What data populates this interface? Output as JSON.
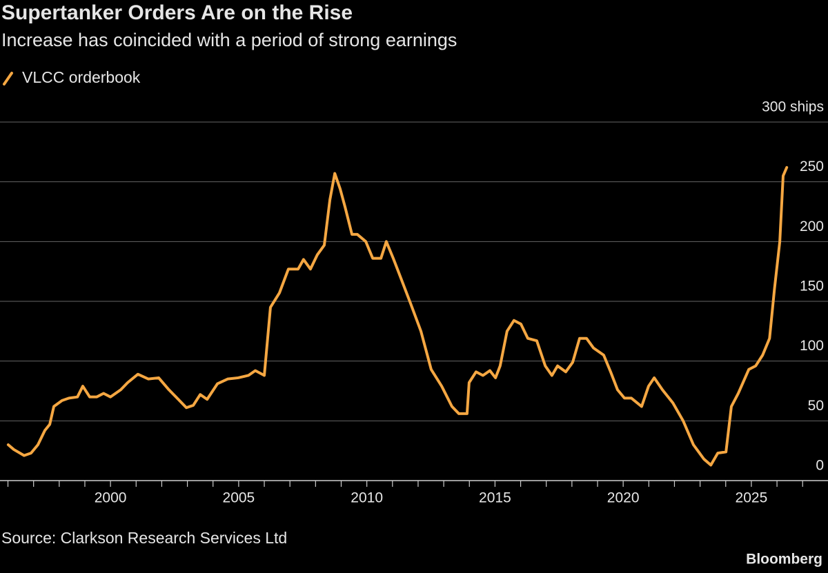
{
  "chart_data": {
    "type": "line",
    "title": "Supertanker Orders Are on the Rise",
    "subtitle": "Increase has coincided with a period of strong earnings",
    "source": "Source: Clarkson Research Services Ltd",
    "brand": "Bloomberg",
    "x": [
      1996.01,
      1996.23,
      1996.63,
      1996.9,
      1997.17,
      1997.44,
      1997.63,
      1997.79,
      1998.11,
      1998.38,
      1998.71,
      1998.92,
      1999.19,
      1999.46,
      1999.73,
      2000.0,
      2000.4,
      2000.67,
      2001.07,
      2001.48,
      2001.88,
      2002.28,
      2002.69,
      2002.96,
      2003.23,
      2003.5,
      2003.77,
      2004.17,
      2004.57,
      2004.98,
      2005.38,
      2005.65,
      2006.0,
      2006.24,
      2006.59,
      2006.94,
      2007.32,
      2007.53,
      2007.8,
      2008.07,
      2008.34,
      2008.56,
      2008.75,
      2008.96,
      2009.15,
      2009.42,
      2009.63,
      2009.96,
      2010.23,
      2010.55,
      2010.76,
      2011.03,
      2011.3,
      2011.71,
      2012.11,
      2012.51,
      2012.92,
      2013.32,
      2013.59,
      2013.91,
      2013.99,
      2014.26,
      2014.53,
      2014.8,
      2015.02,
      2015.2,
      2015.47,
      2015.74,
      2016.01,
      2016.28,
      2016.63,
      2016.96,
      2017.22,
      2017.44,
      2017.76,
      2018.03,
      2018.3,
      2018.57,
      2018.84,
      2019.24,
      2019.51,
      2019.78,
      2020.05,
      2020.32,
      2020.72,
      2020.99,
      2021.21,
      2021.53,
      2021.94,
      2022.34,
      2022.74,
      2023.15,
      2023.42,
      2023.69,
      2024.01,
      2024.22,
      2024.49,
      2024.9,
      2025.17,
      2025.44,
      2025.71,
      2025.9,
      2026.11,
      2026.24,
      2026.38
    ],
    "series": [
      {
        "name": "VLCC orderbook",
        "color": "#f5a742",
        "values": [
          30,
          26,
          21,
          23,
          30,
          42,
          47,
          62,
          67,
          69,
          70,
          79,
          70,
          70,
          73,
          70,
          76,
          82,
          89,
          85,
          86,
          76,
          67,
          61,
          63,
          72,
          68,
          81,
          85,
          86,
          88,
          92,
          88,
          145,
          157,
          177,
          177,
          185,
          177,
          189,
          197,
          235,
          257,
          244,
          229,
          206,
          206,
          200,
          186,
          186,
          200,
          186,
          171,
          148,
          125,
          93,
          79,
          62,
          56,
          56,
          82,
          91,
          88,
          92,
          86,
          96,
          125,
          134,
          131,
          119,
          117,
          96,
          88,
          96,
          91,
          99,
          119,
          119,
          111,
          105,
          91,
          76,
          69,
          69,
          62,
          79,
          86,
          76,
          65,
          50,
          30,
          18,
          13,
          23,
          24,
          62,
          73,
          93,
          96,
          105,
          119,
          160,
          200,
          255,
          262
        ]
      }
    ],
    "xlim": [
      1995.69,
      2027.99
    ],
    "xticks": [
      2000,
      2005,
      2010,
      2015,
      2020,
      2025
    ],
    "xticks_minor": [
      1996,
      1997,
      1998,
      1999,
      2000,
      2001,
      2002,
      2003,
      2004,
      2005,
      2006,
      2007,
      2008,
      2009,
      2010,
      2011,
      2012,
      2013,
      2014,
      2015,
      2016,
      2017,
      2018,
      2019,
      2020,
      2021,
      2022,
      2023,
      2024,
      2025,
      2026,
      2027
    ],
    "ylim": [
      0,
      300
    ],
    "yticks": [
      0,
      50,
      100,
      150,
      200,
      250,
      {
        "value": 300,
        "label": "300 ships"
      }
    ],
    "grid": true
  }
}
